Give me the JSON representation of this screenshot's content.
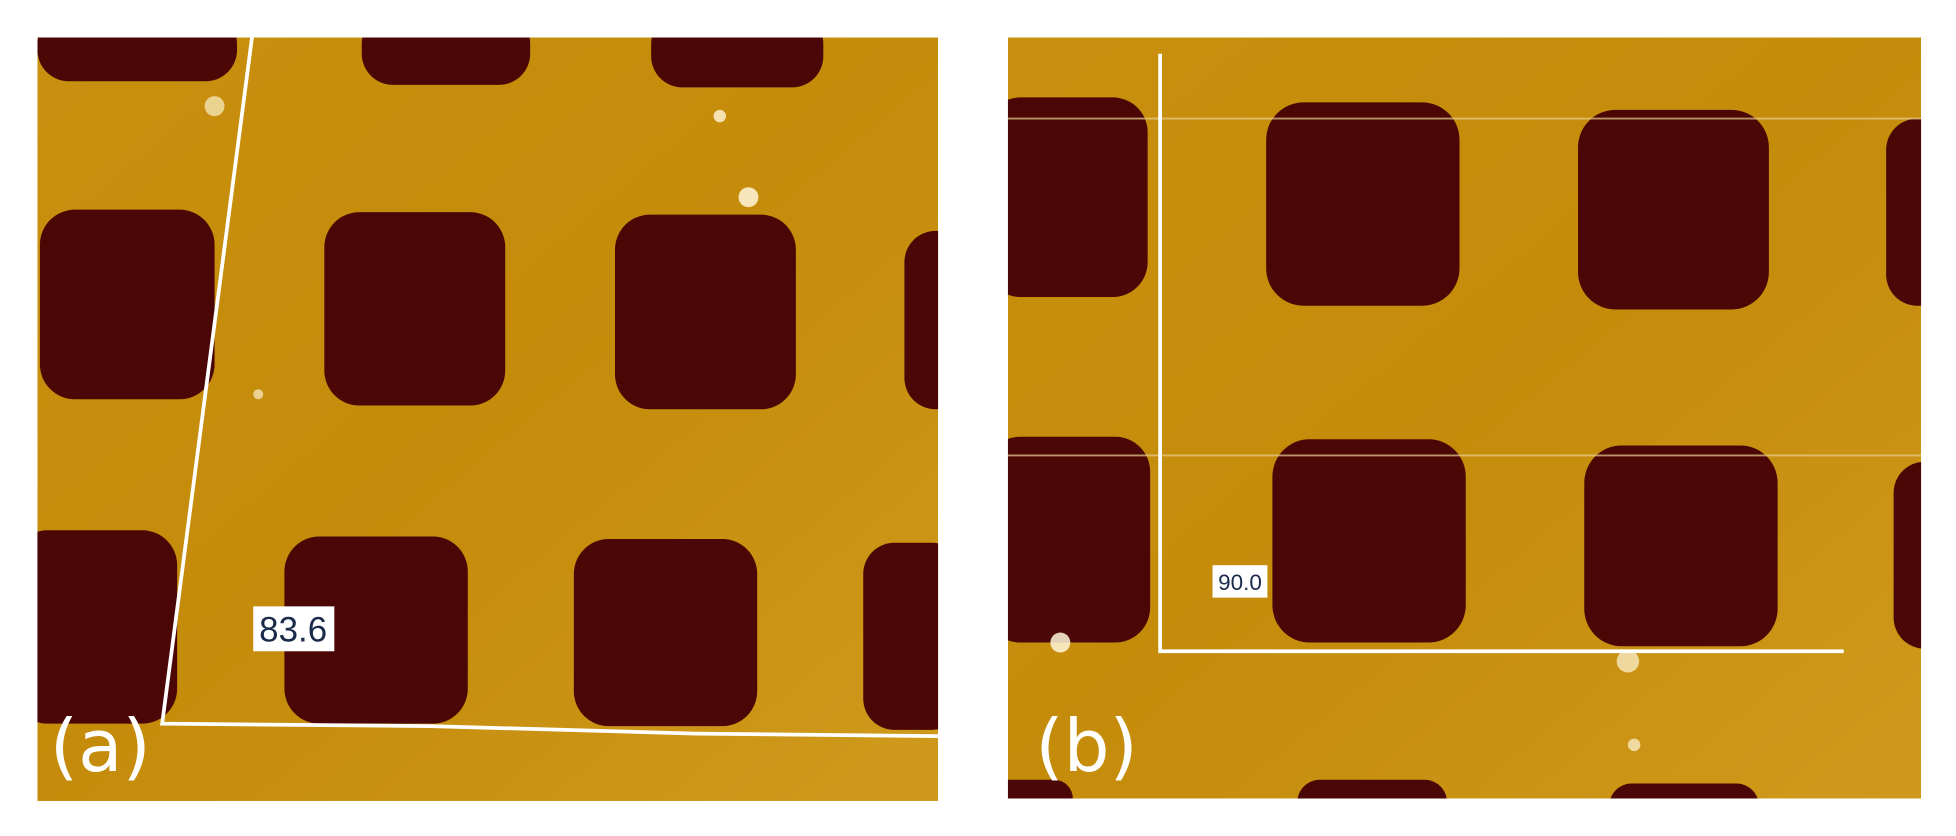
{
  "panels": [
    {
      "label": "(a)",
      "angle_label": "83.6"
    },
    {
      "label": "(b)",
      "angle_label": "90.0"
    }
  ]
}
